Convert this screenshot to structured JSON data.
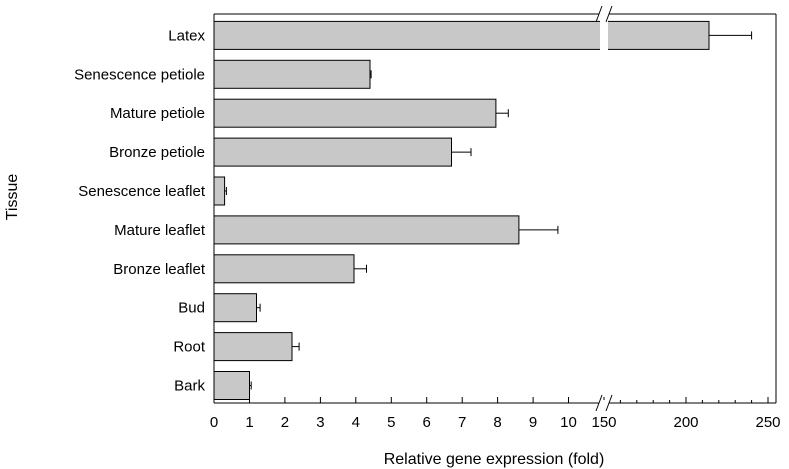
{
  "chart_data": {
    "type": "bar",
    "orientation": "horizontal",
    "xlabel": "Relative gene expression (fold)",
    "ylabel": "Tissue",
    "categories": [
      "Latex",
      "Senescence petiole",
      "Mature petiole",
      "Bronze petiole",
      "Senescence leaflet",
      "Mature leaflet",
      "Bronze leaflet",
      "Bud",
      "Root",
      "Bark"
    ],
    "values": [
      214,
      4.4,
      7.95,
      6.7,
      0.3,
      8.6,
      3.95,
      1.2,
      2.2,
      1.0
    ],
    "errors": [
      26,
      0.03,
      0.35,
      0.55,
      0.05,
      1.1,
      0.35,
      0.1,
      0.2,
      0.05
    ],
    "x_axis": {
      "broken": true,
      "segment_1": {
        "range": [
          0,
          11
        ],
        "ticks": [
          "0",
          "1",
          "2",
          "3",
          "4",
          "5",
          "6",
          "7",
          "8",
          "9",
          "10",
          "11"
        ],
        "tick_labels": [
          "0",
          "1",
          "2",
          "3",
          "4",
          "5",
          "6",
          "7",
          "8",
          "9",
          "10"
        ]
      },
      "segment_2": {
        "range": [
          150,
          250
        ],
        "ticks": [
          "150",
          "200",
          "250"
        ]
      }
    },
    "bar_color": "#c8c8c8",
    "grid": false,
    "legend": "none"
  }
}
